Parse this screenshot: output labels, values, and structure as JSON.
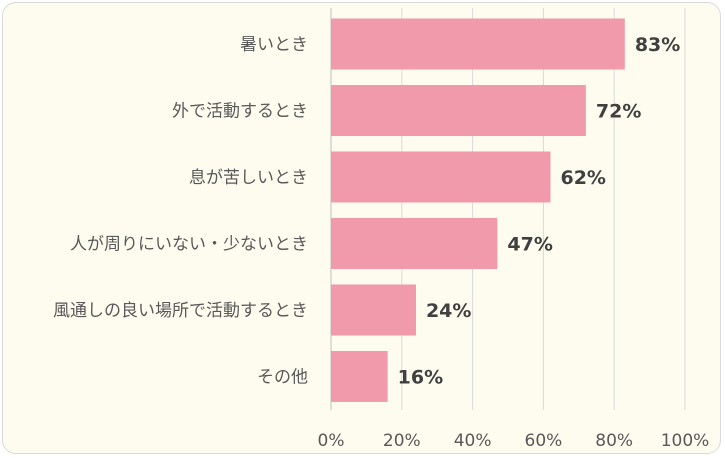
{
  "chart_data": {
    "type": "bar",
    "orientation": "horizontal",
    "categories": [
      "暑いとき",
      "外で活動するとき",
      "息が苦しいとき",
      "人が周りにいない・少ないとき",
      "風通しの良い場所で活動するとき",
      "その他"
    ],
    "values": [
      83,
      72,
      62,
      47,
      24,
      16
    ],
    "data_labels": [
      "83%",
      "72%",
      "62%",
      "47%",
      "24%",
      "16%"
    ],
    "xlim": [
      0,
      100
    ],
    "x_ticks": [
      0,
      20,
      40,
      60,
      80,
      100
    ],
    "x_tick_labels": [
      "0%",
      "20%",
      "40%",
      "60%",
      "80%",
      "100%"
    ],
    "grid": true,
    "bar_color": "#f09aab",
    "background_color": "#fefcef"
  }
}
